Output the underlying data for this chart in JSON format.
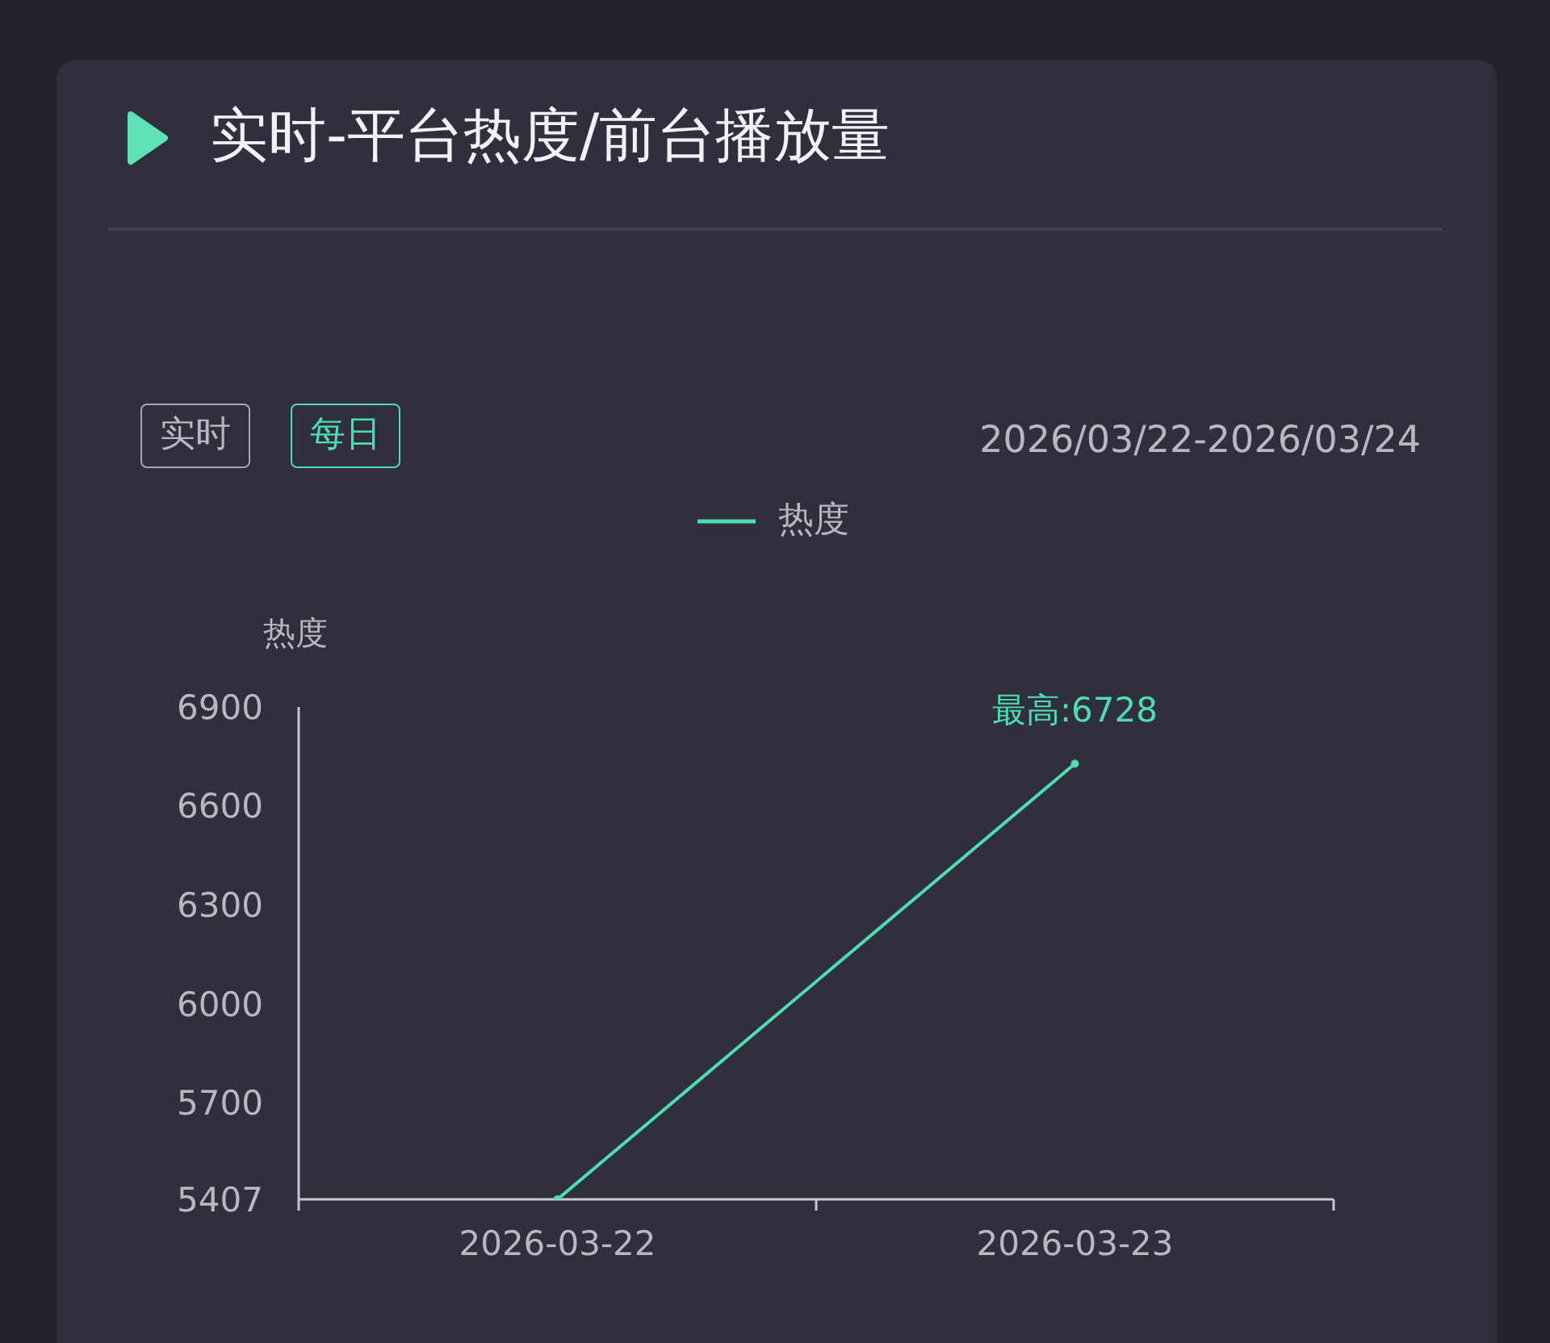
{
  "chart_data": {
    "type": "line",
    "title": "实时-平台热度/前台播放量",
    "subtitle": "2026/03/22-2026/03/24",
    "ylabel": "热度",
    "annotations": [
      "实时",
      "每日",
      {
        "text": "最高:6728",
        "x": "2026-03-23",
        "y": 6728
      }
    ],
    "categories": [
      "2026-03-22",
      "2026-03-23"
    ],
    "series": [
      {
        "name": "热度",
        "color": "#4fdcb4",
        "values": [
          5407,
          6728
        ]
      }
    ],
    "ylim": [
      5407,
      6900
    ],
    "yticks": [
      5407,
      5700,
      6000,
      6300,
      6600,
      6900
    ],
    "grid": false,
    "legend": "top",
    "marker": "circle",
    "line_style": "solid"
  }
}
